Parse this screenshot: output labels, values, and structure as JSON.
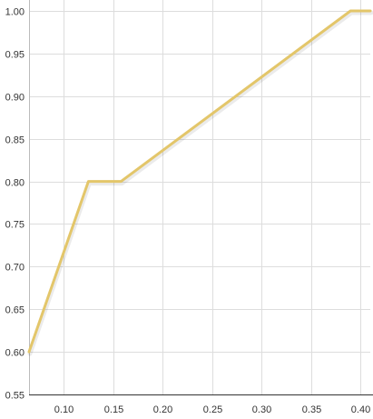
{
  "chart_data": {
    "type": "line",
    "title": "",
    "xlabel": "",
    "ylabel": "",
    "xlim": [
      0.065,
      0.41
    ],
    "ylim": [
      0.55,
      1.0
    ],
    "x_ticks": [
      0.1,
      0.15,
      0.2,
      0.25,
      0.3,
      0.35,
      0.4
    ],
    "y_ticks": [
      0.55,
      0.6,
      0.65,
      0.7,
      0.75,
      0.8,
      0.85,
      0.9,
      0.95,
      1.0
    ],
    "x_tick_labels": [
      "0.10",
      "0.15",
      "0.20",
      "0.25",
      "0.30",
      "0.35",
      "0.40"
    ],
    "y_tick_labels": [
      "0.55",
      "0.60",
      "0.65",
      "0.70",
      "0.75",
      "0.80",
      "0.85",
      "0.90",
      "0.95",
      "1.00"
    ],
    "grid": true,
    "series": [
      {
        "color": "#e3c66a",
        "x": [
          0.065,
          0.125,
          0.158,
          0.39,
          0.41
        ],
        "y": [
          0.6,
          0.8,
          0.8,
          1.0,
          1.0
        ]
      }
    ]
  }
}
